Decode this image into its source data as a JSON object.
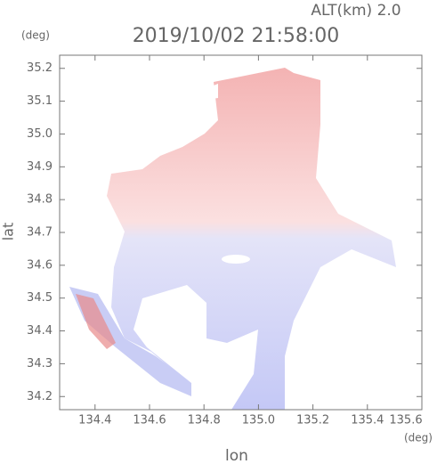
{
  "chart_data": {
    "type": "map",
    "title": "2019/10/02 21:58:00",
    "subtitle": "ALT(km)  2.0",
    "x_label": "lon",
    "y_label": "lat",
    "x_unit": "(deg)",
    "y_unit": "(deg)",
    "xlim": [
      134.27,
      135.6
    ],
    "ylim": [
      34.16,
      35.24
    ],
    "xticks": [
      134.4,
      134.6,
      134.8,
      {
        "value": 135,
        "label": "135.0"
      },
      135.2,
      135.4,
      135.6
    ],
    "yticks": [
      34.2,
      34.3,
      34.4,
      34.5,
      34.6,
      34.7,
      34.8,
      34.9,
      {
        "value": 35,
        "label": "35.0"
      },
      35.1,
      35.2
    ]
  }
}
